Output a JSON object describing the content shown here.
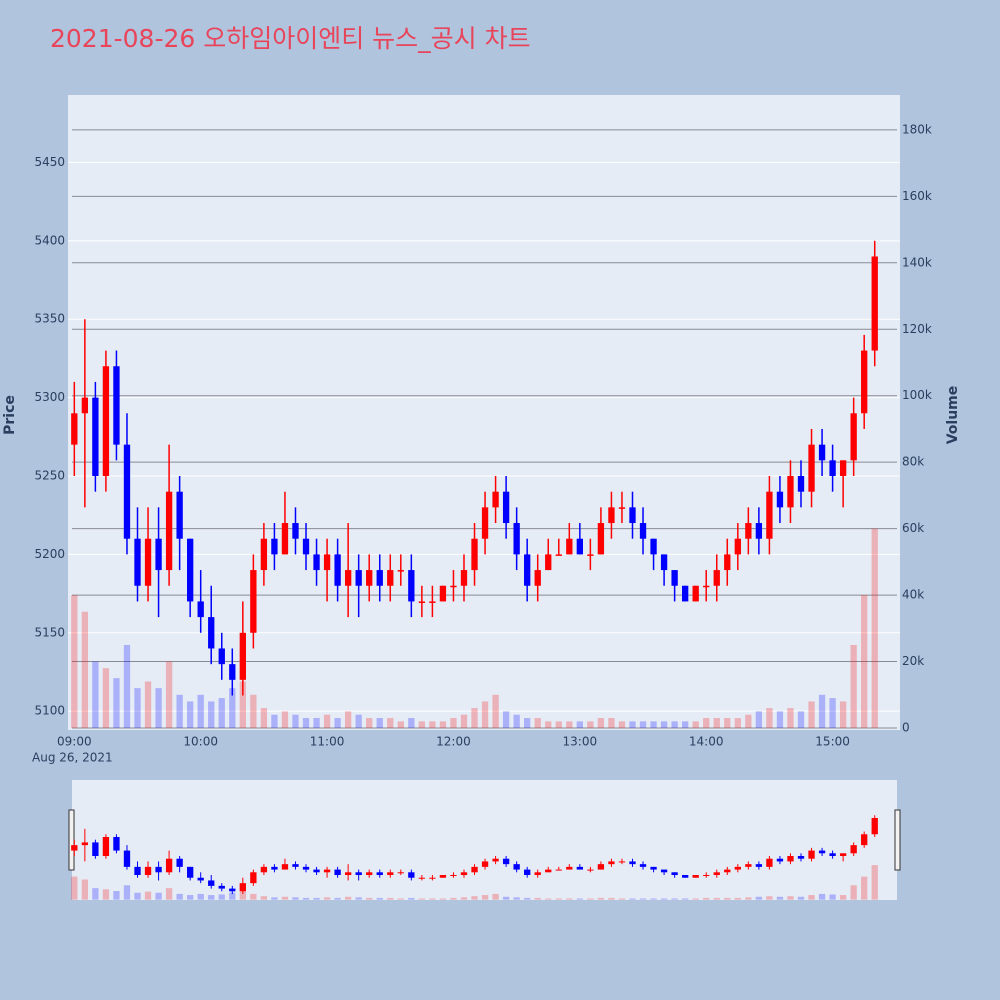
{
  "chart_data": {
    "type": "candlestick",
    "title": "2021-08-26 오하임아이엔티 뉴스_공시 차트",
    "y_title": "Price",
    "y2_title": "Volume",
    "date_label": "Aug 26, 2021",
    "increasing_color": "#ff0000",
    "decreasing_color": "#0000ff",
    "x": [
      "09:00",
      "09:05",
      "09:10",
      "09:15",
      "09:20",
      "09:25",
      "09:30",
      "09:35",
      "09:40",
      "09:45",
      "09:50",
      "09:55",
      "10:00",
      "10:05",
      "10:10",
      "10:15",
      "10:20",
      "10:25",
      "10:30",
      "10:35",
      "10:40",
      "10:45",
      "10:50",
      "10:55",
      "11:00",
      "11:05",
      "11:10",
      "11:15",
      "11:20",
      "11:25",
      "11:30",
      "11:35",
      "11:40",
      "11:45",
      "11:50",
      "11:55",
      "12:00",
      "12:05",
      "12:10",
      "12:15",
      "12:20",
      "12:25",
      "12:30",
      "12:35",
      "12:40",
      "12:45",
      "12:50",
      "12:55",
      "13:00",
      "13:05",
      "13:10",
      "13:15",
      "13:20",
      "13:25",
      "13:30",
      "13:35",
      "13:40",
      "13:45",
      "13:50",
      "13:55",
      "14:00",
      "14:05",
      "14:10",
      "14:15",
      "14:20",
      "14:25",
      "14:30",
      "14:35",
      "14:40",
      "14:45",
      "14:50",
      "14:55",
      "15:00",
      "15:05",
      "15:10",
      "15:15",
      "15:20"
    ],
    "open": [
      5270,
      5290,
      5300,
      5250,
      5320,
      5270,
      5210,
      5180,
      5210,
      5190,
      5240,
      5210,
      5170,
      5160,
      5140,
      5130,
      5120,
      5150,
      5190,
      5210,
      5200,
      5220,
      5210,
      5200,
      5190,
      5200,
      5180,
      5190,
      5180,
      5190,
      5180,
      5190,
      5190,
      5170,
      5170,
      5170,
      5180,
      5180,
      5190,
      5210,
      5230,
      5240,
      5220,
      5200,
      5180,
      5190,
      5200,
      5200,
      5210,
      5200,
      5200,
      5220,
      5230,
      5230,
      5220,
      5210,
      5200,
      5190,
      5180,
      5170,
      5180,
      5180,
      5190,
      5200,
      5210,
      5220,
      5210,
      5240,
      5230,
      5250,
      5240,
      5270,
      5260,
      5250,
      5260,
      5290,
      5330
    ],
    "high": [
      5310,
      5350,
      5310,
      5330,
      5330,
      5290,
      5230,
      5230,
      5230,
      5270,
      5250,
      5210,
      5190,
      5180,
      5150,
      5140,
      5170,
      5200,
      5220,
      5220,
      5240,
      5230,
      5220,
      5210,
      5210,
      5210,
      5220,
      5200,
      5200,
      5200,
      5200,
      5200,
      5200,
      5180,
      5180,
      5180,
      5190,
      5200,
      5220,
      5240,
      5250,
      5250,
      5230,
      5210,
      5200,
      5210,
      5210,
      5220,
      5220,
      5210,
      5230,
      5240,
      5240,
      5240,
      5230,
      5210,
      5200,
      5190,
      5180,
      5180,
      5190,
      5200,
      5210,
      5220,
      5230,
      5230,
      5250,
      5250,
      5260,
      5260,
      5280,
      5280,
      5270,
      5260,
      5300,
      5340,
      5400
    ],
    "low": [
      5250,
      5230,
      5240,
      5240,
      5260,
      5200,
      5170,
      5170,
      5160,
      5180,
      5190,
      5160,
      5150,
      5130,
      5120,
      5110,
      5110,
      5140,
      5180,
      5190,
      5200,
      5200,
      5190,
      5180,
      5170,
      5170,
      5160,
      5160,
      5170,
      5170,
      5170,
      5180,
      5160,
      5160,
      5160,
      5170,
      5170,
      5170,
      5180,
      5200,
      5220,
      5210,
      5190,
      5170,
      5170,
      5190,
      5200,
      5200,
      5200,
      5190,
      5200,
      5210,
      5220,
      5210,
      5200,
      5190,
      5180,
      5170,
      5170,
      5170,
      5170,
      5170,
      5180,
      5190,
      5200,
      5200,
      5200,
      5220,
      5220,
      5230,
      5230,
      5250,
      5240,
      5230,
      5250,
      5280,
      5320
    ],
    "close": [
      5290,
      5300,
      5250,
      5320,
      5270,
      5210,
      5180,
      5210,
      5190,
      5240,
      5210,
      5170,
      5160,
      5140,
      5130,
      5120,
      5150,
      5190,
      5210,
      5200,
      5220,
      5210,
      5200,
      5190,
      5200,
      5180,
      5190,
      5180,
      5190,
      5180,
      5190,
      5190,
      5170,
      5170,
      5170,
      5180,
      5180,
      5190,
      5210,
      5230,
      5240,
      5220,
      5200,
      5180,
      5190,
      5200,
      5200,
      5210,
      5200,
      5200,
      5220,
      5230,
      5230,
      5220,
      5210,
      5200,
      5190,
      5180,
      5170,
      5180,
      5180,
      5190,
      5200,
      5210,
      5220,
      5210,
      5240,
      5230,
      5250,
      5240,
      5270,
      5260,
      5250,
      5260,
      5290,
      5330,
      5390
    ],
    "volume": [
      40000,
      35000,
      20000,
      18000,
      15000,
      25000,
      12000,
      14000,
      12000,
      20000,
      10000,
      8000,
      10000,
      8000,
      9000,
      12000,
      14000,
      10000,
      6000,
      4000,
      5000,
      4000,
      3000,
      3000,
      4000,
      3000,
      5000,
      4000,
      3000,
      3000,
      3000,
      2000,
      3000,
      2000,
      2000,
      2000,
      3000,
      4000,
      6000,
      8000,
      10000,
      5000,
      4000,
      3000,
      3000,
      2000,
      2000,
      2000,
      2000,
      2000,
      3000,
      3000,
      2000,
      2000,
      2000,
      2000,
      2000,
      2000,
      2000,
      2000,
      3000,
      3000,
      3000,
      3000,
      4000,
      5000,
      6000,
      5000,
      6000,
      5000,
      8000,
      10000,
      9000,
      8000,
      25000,
      40000,
      60000
    ],
    "xlim": [
      "08:57",
      "15:32"
    ],
    "xticks": [
      "09:00",
      "10:00",
      "11:00",
      "12:00",
      "13:00",
      "14:00",
      "15:00"
    ],
    "ylim": [
      5088,
      5493
    ],
    "yticks": [
      5100,
      5150,
      5200,
      5250,
      5300,
      5350,
      5400,
      5450
    ],
    "y2lim": [
      -600,
      190500
    ],
    "y2ticks": [
      0,
      {
        "value": 20000,
        "label": "20k"
      },
      {
        "value": 40000,
        "label": "40k"
      },
      {
        "value": 60000,
        "label": "60k"
      },
      {
        "value": 80000,
        "label": "80k"
      },
      {
        "value": 100000,
        "label": "100k"
      },
      {
        "value": 120000,
        "label": "120k"
      },
      {
        "value": 140000,
        "label": "140k"
      },
      {
        "value": 160000,
        "label": "160k"
      },
      {
        "value": 180000,
        "label": "180k"
      }
    ]
  }
}
